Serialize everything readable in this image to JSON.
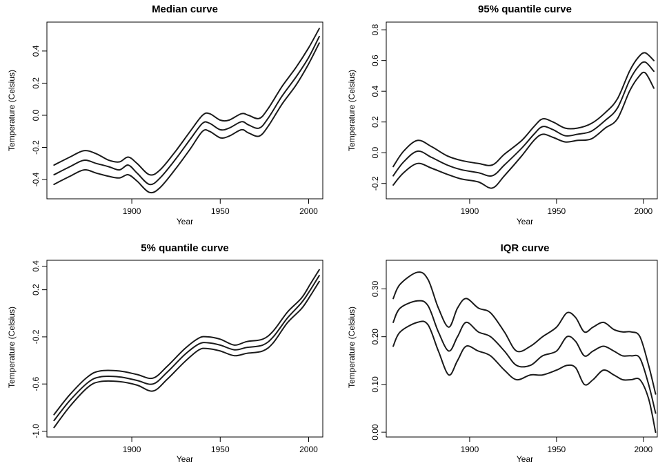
{
  "chart_data": [
    {
      "type": "line",
      "title": "Median curve",
      "xlabel": "Year",
      "ylabel": "Temperature (Celsius)",
      "xlim": [
        1852,
        2008
      ],
      "ylim": [
        -0.52,
        0.58
      ],
      "xticks": [
        1900,
        1950,
        2000
      ],
      "xtick_labels": [
        "1900",
        "1950",
        "2000"
      ],
      "yticks": [
        -0.4,
        -0.2,
        0.0,
        0.2,
        0.4
      ],
      "ytick_labels": [
        "-0.4",
        "-0.2",
        "0.0",
        "0.2",
        "0.4"
      ],
      "x": [
        1856,
        1865,
        1873,
        1880,
        1887,
        1893,
        1898,
        1903,
        1910,
        1916,
        1925,
        1933,
        1940,
        1944,
        1950,
        1955,
        1962,
        1966,
        1972,
        1977,
        1985,
        1993,
        2000,
        2006
      ],
      "series": [
        {
          "values": [
            -0.31,
            -0.26,
            -0.22,
            -0.24,
            -0.28,
            -0.29,
            -0.26,
            -0.3,
            -0.37,
            -0.34,
            -0.22,
            -0.1,
            0.0,
            0.01,
            -0.03,
            -0.03,
            0.01,
            0.0,
            -0.02,
            0.04,
            0.18,
            0.3,
            0.42,
            0.54
          ]
        },
        {
          "values": [
            -0.37,
            -0.32,
            -0.28,
            -0.3,
            -0.32,
            -0.34,
            -0.31,
            -0.36,
            -0.43,
            -0.39,
            -0.27,
            -0.15,
            -0.05,
            -0.05,
            -0.09,
            -0.08,
            -0.04,
            -0.06,
            -0.08,
            -0.02,
            0.12,
            0.24,
            0.36,
            0.49
          ]
        },
        {
          "values": [
            -0.43,
            -0.38,
            -0.34,
            -0.36,
            -0.38,
            -0.39,
            -0.37,
            -0.41,
            -0.48,
            -0.45,
            -0.33,
            -0.21,
            -0.1,
            -0.1,
            -0.14,
            -0.13,
            -0.09,
            -0.11,
            -0.13,
            -0.07,
            0.07,
            0.19,
            0.32,
            0.45
          ]
        }
      ]
    },
    {
      "type": "line",
      "title": "95% quantile curve",
      "xlabel": "Year",
      "ylabel": "Temperature (Celsius)",
      "xlim": [
        1852,
        2008
      ],
      "ylim": [
        -0.3,
        0.85
      ],
      "xticks": [
        1900,
        1950,
        2000
      ],
      "xtick_labels": [
        "1900",
        "1950",
        "2000"
      ],
      "yticks": [
        -0.2,
        0.0,
        0.2,
        0.4,
        0.6,
        0.8
      ],
      "ytick_labels": [
        "-0.2",
        "0.0",
        "0.2",
        "0.4",
        "0.6",
        "0.8"
      ],
      "x": [
        1856,
        1862,
        1870,
        1878,
        1887,
        1895,
        1905,
        1913,
        1920,
        1930,
        1937,
        1942,
        1948,
        1955,
        1962,
        1970,
        1978,
        1985,
        1992,
        1997,
        2001,
        2006
      ],
      "series": [
        {
          "values": [
            -0.09,
            0.01,
            0.08,
            0.04,
            -0.02,
            -0.05,
            -0.07,
            -0.08,
            -0.01,
            0.08,
            0.17,
            0.22,
            0.2,
            0.16,
            0.16,
            0.19,
            0.26,
            0.35,
            0.53,
            0.62,
            0.65,
            0.6
          ]
        },
        {
          "values": [
            -0.15,
            -0.06,
            0.01,
            -0.03,
            -0.08,
            -0.11,
            -0.13,
            -0.15,
            -0.08,
            0.03,
            0.12,
            0.17,
            0.15,
            0.11,
            0.12,
            0.14,
            0.21,
            0.29,
            0.47,
            0.56,
            0.59,
            0.53
          ]
        },
        {
          "values": [
            -0.21,
            -0.13,
            -0.07,
            -0.1,
            -0.14,
            -0.17,
            -0.19,
            -0.23,
            -0.15,
            -0.02,
            0.08,
            0.12,
            0.1,
            0.07,
            0.08,
            0.09,
            0.16,
            0.22,
            0.4,
            0.49,
            0.52,
            0.42
          ]
        }
      ]
    },
    {
      "type": "line",
      "title": "5% quantile curve",
      "xlabel": "Year",
      "ylabel": "Temperature (Celsius)",
      "xlim": [
        1852,
        2008
      ],
      "ylim": [
        -1.05,
        0.45
      ],
      "xticks": [
        1900,
        1950,
        2000
      ],
      "xtick_labels": [
        "1900",
        "1950",
        "2000"
      ],
      "yticks": [
        -1.0,
        -0.6,
        -0.2,
        0.2,
        0.4
      ],
      "ytick_labels": [
        "-1.0",
        "-0.6",
        "-0.2",
        "0.2",
        "0.4"
      ],
      "x": [
        1856,
        1865,
        1875,
        1882,
        1893,
        1903,
        1912,
        1920,
        1930,
        1938,
        1943,
        1950,
        1958,
        1965,
        1974,
        1980,
        1988,
        1996,
        2001,
        2006
      ],
      "series": [
        {
          "values": [
            -0.86,
            -0.69,
            -0.54,
            -0.49,
            -0.49,
            -0.52,
            -0.55,
            -0.45,
            -0.3,
            -0.21,
            -0.2,
            -0.22,
            -0.27,
            -0.24,
            -0.22,
            -0.15,
            0.01,
            0.13,
            0.25,
            0.37
          ]
        },
        {
          "values": [
            -0.91,
            -0.74,
            -0.59,
            -0.54,
            -0.54,
            -0.57,
            -0.6,
            -0.5,
            -0.35,
            -0.26,
            -0.25,
            -0.27,
            -0.31,
            -0.29,
            -0.27,
            -0.2,
            -0.04,
            0.09,
            0.2,
            0.32
          ]
        },
        {
          "values": [
            -0.97,
            -0.79,
            -0.63,
            -0.58,
            -0.58,
            -0.61,
            -0.66,
            -0.56,
            -0.41,
            -0.31,
            -0.3,
            -0.32,
            -0.36,
            -0.34,
            -0.32,
            -0.25,
            -0.08,
            0.04,
            0.15,
            0.27
          ]
        }
      ]
    },
    {
      "type": "line",
      "title": "IQR curve",
      "xlabel": "Year",
      "ylabel": "Temperature (Celsius)",
      "xlim": [
        1852,
        2008
      ],
      "ylim": [
        -0.01,
        0.36
      ],
      "xticks": [
        1900,
        1950,
        2000
      ],
      "xtick_labels": [
        "1900",
        "1950",
        "2000"
      ],
      "yticks": [
        0.0,
        0.1,
        0.2,
        0.3
      ],
      "ytick_labels": [
        "0.00",
        "0.10",
        "0.20",
        "0.30"
      ],
      "x": [
        1856,
        1860,
        1870,
        1876,
        1882,
        1888,
        1893,
        1898,
        1905,
        1912,
        1920,
        1927,
        1935,
        1942,
        1950,
        1956,
        1961,
        1966,
        1971,
        1977,
        1983,
        1988,
        1993,
        1998,
        2003,
        2007
      ],
      "series": [
        {
          "values": [
            0.28,
            0.31,
            0.335,
            0.32,
            0.26,
            0.22,
            0.26,
            0.28,
            0.26,
            0.25,
            0.21,
            0.17,
            0.18,
            0.2,
            0.22,
            0.25,
            0.24,
            0.21,
            0.22,
            0.23,
            0.215,
            0.21,
            0.21,
            0.2,
            0.14,
            0.08
          ]
        },
        {
          "values": [
            0.23,
            0.26,
            0.275,
            0.265,
            0.21,
            0.17,
            0.2,
            0.23,
            0.21,
            0.2,
            0.17,
            0.14,
            0.14,
            0.16,
            0.17,
            0.2,
            0.19,
            0.16,
            0.17,
            0.18,
            0.17,
            0.16,
            0.16,
            0.155,
            0.1,
            0.04
          ]
        },
        {
          "values": [
            0.18,
            0.21,
            0.23,
            0.225,
            0.17,
            0.12,
            0.15,
            0.18,
            0.17,
            0.16,
            0.13,
            0.11,
            0.12,
            0.12,
            0.13,
            0.14,
            0.135,
            0.1,
            0.11,
            0.13,
            0.12,
            0.11,
            0.11,
            0.11,
            0.07,
            0.0
          ]
        }
      ]
    }
  ]
}
